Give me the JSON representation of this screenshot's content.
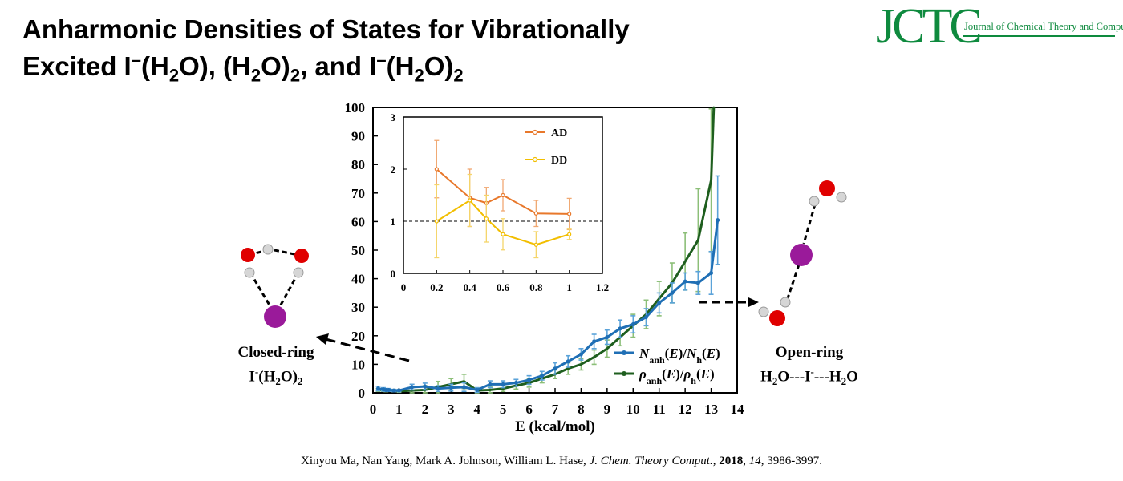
{
  "header": {
    "title_line1": "Anharmonic Densities of States for Vibrationally",
    "title_line2_p1": "Excited I",
    "title_line2_p2": "(H",
    "title_line2_p3": "O), (H",
    "title_line2_p4": "O)",
    "title_line2_p5": ", and I",
    "title_line2_p6": "(H",
    "title_line2_p7": "O)",
    "minus": "–",
    "sub2": "2"
  },
  "logo": {
    "mark": "JCTC",
    "journal_name": "Journal of Chemical Theory and Computation"
  },
  "closed_ring": {
    "line1": "Closed-ring",
    "line2_a": "I",
    "line2_sup": "-",
    "line2_b": "(H",
    "line2_sub1": "2",
    "line2_c": "O)",
    "line2_sub2": "2"
  },
  "open_ring": {
    "line1": "Open-ring",
    "line2_a": "H",
    "line2_sub1": "2",
    "line2_b": "O---I",
    "line2_sup": "-",
    "line2_c": "---H",
    "line2_sub2": "2",
    "line2_d": "O"
  },
  "citation": {
    "authors": "Xinyou Ma, Nan Yang, Mark A. Johnson, William  L. Hase, ",
    "journal": "J. Chem. Theory Comput.",
    "sep1": ", ",
    "year": "2018",
    "sep2": ", ",
    "volume": "14",
    "pages": ", 3986-3997."
  },
  "colors": {
    "blue": "#1f6fb5",
    "blue_err": "#5ba3d9",
    "green": "#1e5e1e",
    "green_err": "#8cbf78",
    "orange": "#e8782b",
    "orange_err": "#f0a872",
    "yellow": "#f2be00",
    "yellow_err": "#f5d56a",
    "logo_green": "#0e8a3e"
  },
  "chart_data": [
    {
      "type": "line",
      "xlabel": "E (kcal/mol)",
      "xlim": [
        0,
        14
      ],
      "ylim": [
        0,
        100
      ],
      "xticks": [
        0,
        1,
        2,
        3,
        4,
        5,
        6,
        7,
        8,
        9,
        10,
        11,
        12,
        13,
        14
      ],
      "yticks": [
        0,
        10,
        20,
        30,
        40,
        50,
        60,
        70,
        80,
        90,
        100
      ],
      "legend": {
        "placement": "bottom-right"
      },
      "series": [
        {
          "name": "Nanh(E)/Nh(E)",
          "x": [
            0.2,
            0.4,
            0.5,
            0.6,
            0.8,
            1,
            1.5,
            2,
            2.5,
            3,
            3.5,
            4,
            4.5,
            5,
            5.5,
            6,
            6.5,
            7,
            7.5,
            8,
            8.5,
            9,
            9.5,
            10,
            10.5,
            11,
            11.5,
            12,
            12.5,
            13,
            13.25
          ],
          "y": [
            1.5,
            1.2,
            1.0,
            1.0,
            0.8,
            0.8,
            2.0,
            2.2,
            1.5,
            1.8,
            2.0,
            1.0,
            3.0,
            3.0,
            3.5,
            4.5,
            6.0,
            8.5,
            11.0,
            13.5,
            18.0,
            19.5,
            22.5,
            24.0,
            26.5,
            31.5,
            35.0,
            39.0,
            38.5,
            42.0,
            60.5
          ],
          "err": [
            0.8,
            0.6,
            0.5,
            0.5,
            0.4,
            0.4,
            1.0,
            1.2,
            1.0,
            1.2,
            1.5,
            0.8,
            1.2,
            1.2,
            1.2,
            1.5,
            1.5,
            2.0,
            2.0,
            2.0,
            2.5,
            2.5,
            3.0,
            3.0,
            3.0,
            3.5,
            3.5,
            3.0,
            4.0,
            7.5,
            15.5
          ]
        },
        {
          "name": "ρanh(E)/ρh(E)",
          "x": [
            0.2,
            0.4,
            0.5,
            0.6,
            0.8,
            1,
            1.5,
            2,
            2.5,
            3,
            3.5,
            4,
            4.5,
            5,
            5.5,
            6,
            6.5,
            7,
            7.5,
            8,
            8.5,
            9,
            9.5,
            10,
            10.5,
            11,
            11.5,
            12,
            12.5,
            13,
            13.1
          ],
          "y": [
            1.0,
            1.0,
            0.8,
            0.9,
            0.8,
            0.6,
            0.8,
            1.0,
            2.0,
            3.0,
            4.0,
            0.8,
            1.0,
            1.5,
            2.5,
            3.5,
            5.0,
            6.5,
            8.5,
            10.0,
            12.5,
            15.5,
            19.5,
            23.5,
            27.5,
            33.0,
            38.5,
            46.0,
            53.5,
            74.5,
            100
          ],
          "err": [
            0.5,
            0.5,
            0.4,
            0.4,
            0.4,
            0.4,
            1.0,
            1.5,
            2.0,
            2.0,
            2.5,
            0.8,
            1.0,
            1.0,
            1.2,
            1.5,
            1.5,
            1.5,
            2.0,
            2.0,
            2.5,
            3.0,
            3.0,
            4.0,
            5.0,
            6.0,
            7.0,
            10.0,
            18.0,
            25.0,
            0
          ]
        }
      ]
    },
    {
      "type": "line",
      "inset": true,
      "xlim": [
        0,
        1.2
      ],
      "ylim": [
        0,
        3
      ],
      "xticks": [
        0,
        0.2,
        0.4,
        0.6,
        0.8,
        1,
        1.2
      ],
      "yticks": [
        0,
        1,
        2,
        3
      ],
      "reference_line_y": 1,
      "legend": {
        "placement": "top-right"
      },
      "series": [
        {
          "name": "AD",
          "x": [
            0.2,
            0.4,
            0.5,
            0.6,
            0.8,
            1.0
          ],
          "y": [
            2.0,
            1.45,
            1.35,
            1.5,
            1.15,
            1.14
          ],
          "err": [
            0.55,
            0.55,
            0.3,
            0.3,
            0.25,
            0.3
          ]
        },
        {
          "name": "DD",
          "x": [
            0.2,
            0.4,
            0.5,
            0.6,
            0.8,
            1.0
          ],
          "y": [
            1.0,
            1.4,
            1.05,
            0.75,
            0.55,
            0.75
          ],
          "err": [
            0.7,
            0.5,
            0.45,
            0.3,
            0.25,
            0.1
          ]
        }
      ]
    }
  ]
}
